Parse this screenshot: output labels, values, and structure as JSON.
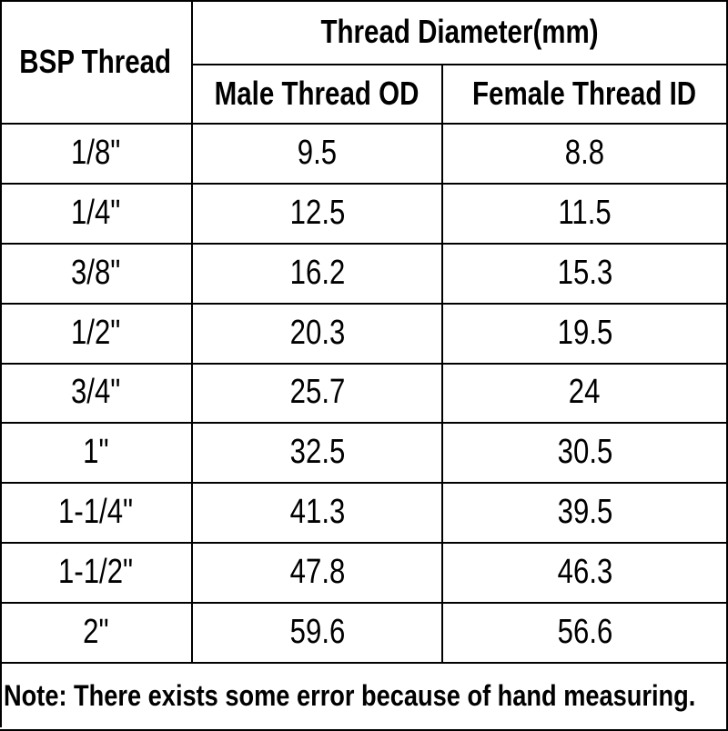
{
  "table": {
    "header": {
      "row_label": "BSP Thread",
      "group": "Thread Diameter(mm)",
      "columns": [
        "Male Thread OD",
        "Female Thread ID"
      ]
    },
    "rows": [
      [
        "1/8\"",
        "9.5",
        "8.8"
      ],
      [
        "1/4\"",
        "12.5",
        "11.5"
      ],
      [
        "3/8\"",
        "16.2",
        "15.3"
      ],
      [
        "1/2\"",
        "20.3",
        "19.5"
      ],
      [
        "3/4\"",
        "25.7",
        "24"
      ],
      [
        "1\"",
        "32.5",
        "30.5"
      ],
      [
        "1-1/4\"",
        "41.3",
        "39.5"
      ],
      [
        "1-1/2\"",
        "47.8",
        "46.3"
      ],
      [
        "2\"",
        "59.6",
        "56.6"
      ]
    ]
  },
  "note": "Note: There exists some error because of hand measuring."
}
